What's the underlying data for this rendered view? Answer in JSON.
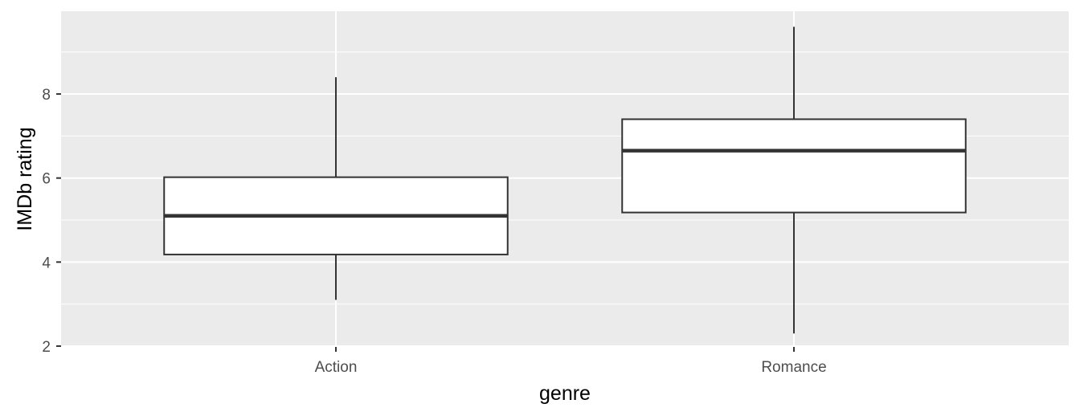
{
  "chart_data": {
    "type": "boxplot",
    "title": "",
    "xlabel": "genre",
    "ylabel": "IMDb rating",
    "categories": [
      "Action",
      "Romance"
    ],
    "boxes": [
      {
        "category": "Action",
        "min": 3.1,
        "q1": 4.18,
        "median": 5.1,
        "q3": 6.02,
        "max": 8.4
      },
      {
        "category": "Romance",
        "min": 2.3,
        "q1": 5.18,
        "median": 6.65,
        "q3": 7.4,
        "max": 9.6
      }
    ],
    "yticks": [
      2,
      4,
      6,
      8
    ],
    "ytick_labels": [
      "2",
      "4",
      "6",
      "8"
    ],
    "ylim": [
      1.98,
      9.97
    ],
    "grid": true,
    "legend": "none"
  },
  "style": {
    "panel_bg": "#EBEBEB",
    "grid_color": "#FFFFFF",
    "box_fill": "#FFFFFF",
    "box_stroke": "#333333",
    "tick_color": "#333333"
  }
}
